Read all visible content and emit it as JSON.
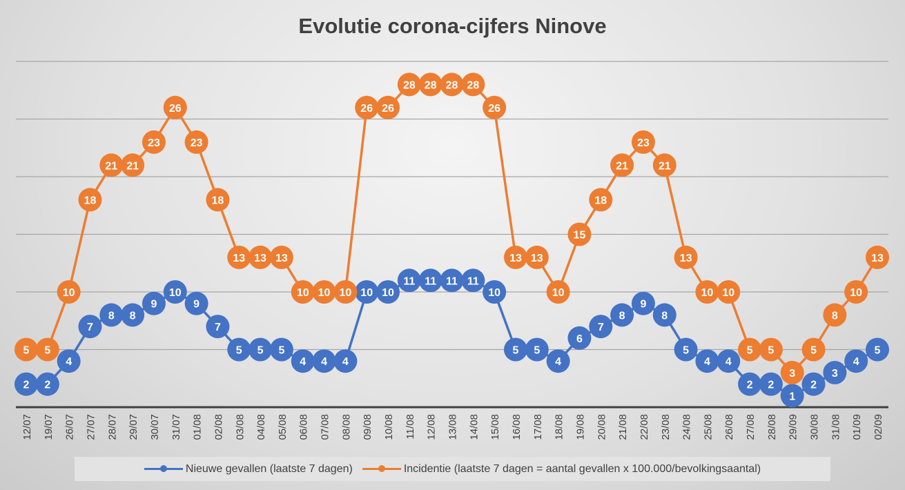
{
  "chart_data": {
    "type": "line",
    "title": "Evolutie corona-cijfers Ninove",
    "xlabel": "",
    "ylabel": "",
    "ylim": [
      0,
      30
    ],
    "grid": true,
    "legend_position": "bottom",
    "categories": [
      "12/07",
      "19/07",
      "26/07",
      "27/07",
      "28/07",
      "29/07",
      "30/07",
      "31/07",
      "01/08",
      "02/08",
      "03/08",
      "04/08",
      "05/08",
      "06/08",
      "07/08",
      "08/08",
      "09/08",
      "10/08",
      "11/08",
      "12/08",
      "13/08",
      "14/08",
      "15/08",
      "16/08",
      "17/08",
      "18/08",
      "19/08",
      "20/08",
      "21/08",
      "22/08",
      "23/08",
      "24/08",
      "25/08",
      "26/08",
      "27/08",
      "28/08",
      "29/09",
      "30/08",
      "31/08",
      "01/09",
      "02/09"
    ],
    "series": [
      {
        "name": "Nieuwe gevallen (laatste 7 dagen)",
        "color": "#4472C4",
        "values": [
          2,
          2,
          4,
          7,
          8,
          8,
          9,
          10,
          9,
          7,
          5,
          5,
          5,
          4,
          4,
          4,
          10,
          10,
          11,
          11,
          11,
          11,
          10,
          5,
          5,
          4,
          6,
          7,
          8,
          9,
          8,
          5,
          4,
          4,
          2,
          2,
          1,
          2,
          3,
          4,
          5
        ]
      },
      {
        "name": "Incidentie (laatste 7 dagen = aantal gevallen x 100.000/bevolkingsaantal)",
        "color": "#ED7D31",
        "values": [
          5,
          5,
          10,
          18,
          21,
          21,
          23,
          26,
          23,
          18,
          13,
          13,
          13,
          10,
          10,
          10,
          26,
          26,
          28,
          28,
          28,
          28,
          26,
          13,
          13,
          10,
          15,
          18,
          21,
          23,
          21,
          13,
          10,
          10,
          5,
          5,
          3,
          5,
          8,
          10,
          13
        ]
      }
    ]
  }
}
